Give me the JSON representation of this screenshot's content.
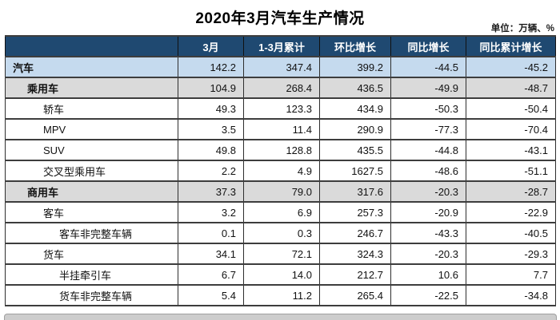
{
  "title": "2020年3月汽车生产情况",
  "unit": "单位：万辆、%",
  "colors": {
    "header_bg": "#1f4971",
    "header_text": "#ffffff",
    "summary_row_bg": "#c5daee",
    "section_row_bg": "#dadada",
    "grid_line": "#3d3d3d"
  },
  "table": {
    "columns": [
      "",
      "3月",
      "1-3月累计",
      "环比增长",
      "同比增长",
      "同比累计增长"
    ],
    "rows": [
      {
        "label": "汽车",
        "indent": 0,
        "style": "blue",
        "values": [
          "142.2",
          "347.4",
          "399.2",
          "-44.5",
          "-45.2"
        ]
      },
      {
        "label": "乘用车",
        "indent": 1,
        "style": "gray",
        "values": [
          "104.9",
          "268.4",
          "436.5",
          "-49.9",
          "-48.7"
        ]
      },
      {
        "label": "轿车",
        "indent": 2,
        "style": "white",
        "values": [
          "49.3",
          "123.3",
          "434.9",
          "-50.3",
          "-50.4"
        ]
      },
      {
        "label": "MPV",
        "indent": 2,
        "style": "white",
        "values": [
          "3.5",
          "11.4",
          "290.9",
          "-77.3",
          "-70.4"
        ]
      },
      {
        "label": "SUV",
        "indent": 2,
        "style": "white",
        "values": [
          "49.8",
          "128.8",
          "435.5",
          "-44.8",
          "-43.1"
        ]
      },
      {
        "label": "交叉型乘用车",
        "indent": 2,
        "style": "white",
        "values": [
          "2.2",
          "4.9",
          "1627.5",
          "-48.6",
          "-51.1"
        ]
      },
      {
        "label": "商用车",
        "indent": 1,
        "style": "gray",
        "values": [
          "37.3",
          "79.0",
          "317.6",
          "-20.3",
          "-28.7"
        ]
      },
      {
        "label": "客车",
        "indent": 2,
        "style": "white",
        "values": [
          "3.2",
          "6.9",
          "257.3",
          "-20.9",
          "-22.9"
        ]
      },
      {
        "label": "客车非完整车辆",
        "indent": 3,
        "style": "white",
        "values": [
          "0.1",
          "0.3",
          "246.7",
          "-43.3",
          "-40.5"
        ]
      },
      {
        "label": "货车",
        "indent": 2,
        "style": "white",
        "values": [
          "34.1",
          "72.1",
          "324.3",
          "-20.3",
          "-29.3"
        ]
      },
      {
        "label": "半挂牵引车",
        "indent": 3,
        "style": "white",
        "values": [
          "6.7",
          "14.0",
          "212.7",
          "10.6",
          "7.7"
        ]
      },
      {
        "label": "货车非完整车辆",
        "indent": 3,
        "style": "white",
        "values": [
          "5.4",
          "11.2",
          "265.4",
          "-22.5",
          "-34.8"
        ]
      }
    ]
  },
  "chart_data": {
    "type": "table",
    "title": "2020年3月汽车生产情况",
    "unit": "万辆、%",
    "columns": [
      "3月",
      "1-3月累计",
      "环比增长",
      "同比增长",
      "同比累计增长"
    ],
    "rows": [
      {
        "category": "汽车",
        "level": 0,
        "march": 142.2,
        "jan_mar_total": 347.4,
        "mom_growth": 399.2,
        "yoy_growth": -44.5,
        "yoy_cumulative_growth": -45.2
      },
      {
        "category": "乘用车",
        "level": 1,
        "march": 104.9,
        "jan_mar_total": 268.4,
        "mom_growth": 436.5,
        "yoy_growth": -49.9,
        "yoy_cumulative_growth": -48.7
      },
      {
        "category": "轿车",
        "level": 2,
        "march": 49.3,
        "jan_mar_total": 123.3,
        "mom_growth": 434.9,
        "yoy_growth": -50.3,
        "yoy_cumulative_growth": -50.4
      },
      {
        "category": "MPV",
        "level": 2,
        "march": 3.5,
        "jan_mar_total": 11.4,
        "mom_growth": 290.9,
        "yoy_growth": -77.3,
        "yoy_cumulative_growth": -70.4
      },
      {
        "category": "SUV",
        "level": 2,
        "march": 49.8,
        "jan_mar_total": 128.8,
        "mom_growth": 435.5,
        "yoy_growth": -44.8,
        "yoy_cumulative_growth": -43.1
      },
      {
        "category": "交叉型乘用车",
        "level": 2,
        "march": 2.2,
        "jan_mar_total": 4.9,
        "mom_growth": 1627.5,
        "yoy_growth": -48.6,
        "yoy_cumulative_growth": -51.1
      },
      {
        "category": "商用车",
        "level": 1,
        "march": 37.3,
        "jan_mar_total": 79.0,
        "mom_growth": 317.6,
        "yoy_growth": -20.3,
        "yoy_cumulative_growth": -28.7
      },
      {
        "category": "客车",
        "level": 2,
        "march": 3.2,
        "jan_mar_total": 6.9,
        "mom_growth": 257.3,
        "yoy_growth": -20.9,
        "yoy_cumulative_growth": -22.9
      },
      {
        "category": "客车非完整车辆",
        "level": 3,
        "march": 0.1,
        "jan_mar_total": 0.3,
        "mom_growth": 246.7,
        "yoy_growth": -43.3,
        "yoy_cumulative_growth": -40.5
      },
      {
        "category": "货车",
        "level": 2,
        "march": 34.1,
        "jan_mar_total": 72.1,
        "mom_growth": 324.3,
        "yoy_growth": -20.3,
        "yoy_cumulative_growth": -29.3
      },
      {
        "category": "半挂牵引车",
        "level": 3,
        "march": 6.7,
        "jan_mar_total": 14.0,
        "mom_growth": 212.7,
        "yoy_growth": 10.6,
        "yoy_cumulative_growth": 7.7
      },
      {
        "category": "货车非完整车辆",
        "level": 3,
        "march": 5.4,
        "jan_mar_total": 11.2,
        "mom_growth": 265.4,
        "yoy_growth": -22.5,
        "yoy_cumulative_growth": -34.8
      }
    ]
  }
}
